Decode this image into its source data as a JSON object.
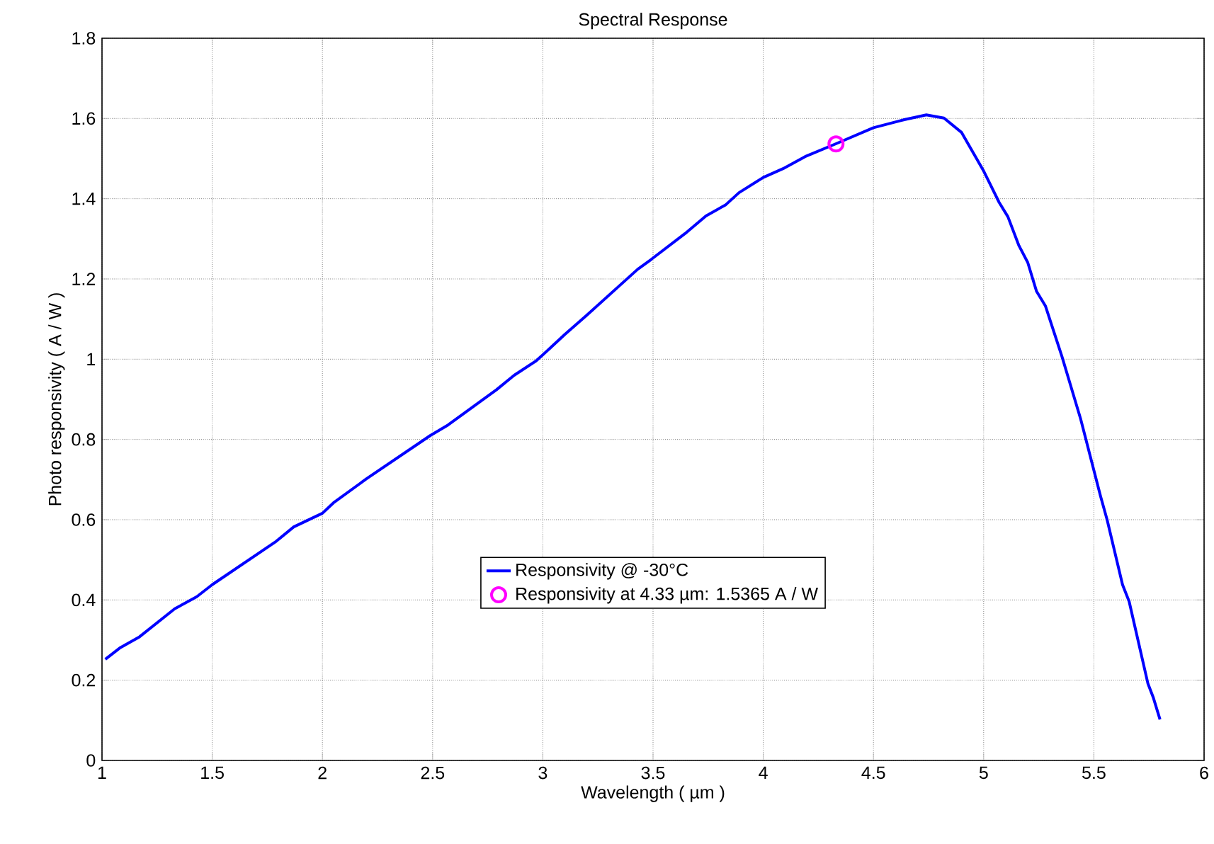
{
  "chart_data": {
    "type": "line",
    "title": "Spectral Response",
    "xlabel": "Wavelength ( µm )",
    "ylabel": "Photo responsivity ( A / W )",
    "xlim": [
      1,
      6
    ],
    "xticks": [
      1,
      1.5,
      2,
      2.5,
      3,
      3.5,
      4,
      4.5,
      5,
      5.5,
      6
    ],
    "ylim": [
      0,
      1.8
    ],
    "yticks": [
      0,
      0.2,
      0.4,
      0.6,
      0.8,
      1,
      1.2,
      1.4,
      1.6,
      1.8
    ],
    "grid": true,
    "legend": "bottom",
    "series": [
      {
        "name": "Responsivity @ -30°C",
        "color": "#0000ff",
        "marker": "none",
        "line_style": "solid",
        "x": [
          1.015,
          1.08,
          1.17,
          1.33,
          1.43,
          1.5,
          1.79,
          1.87,
          2.0,
          2.05,
          2.2,
          2.49,
          2.57,
          2.79,
          2.87,
          2.97,
          3.03,
          3.1,
          3.2,
          3.43,
          3.49,
          3.645,
          3.74,
          3.83,
          3.89,
          4.0,
          4.09,
          4.19,
          4.33,
          4.5,
          4.64,
          4.74,
          4.82,
          4.9,
          5.0,
          5.07,
          5.11,
          5.16,
          5.2,
          5.24,
          5.28,
          5.355,
          5.44,
          5.53,
          5.56,
          5.63,
          5.66,
          5.745,
          5.77,
          5.8
        ],
        "values": [
          0.252,
          0.28,
          0.308,
          0.378,
          0.408,
          0.438,
          0.546,
          0.582,
          0.616,
          0.642,
          0.702,
          0.81,
          0.836,
          0.924,
          0.96,
          0.996,
          1.026,
          1.062,
          1.11,
          1.224,
          1.248,
          1.313,
          1.357,
          1.385,
          1.415,
          1.453,
          1.475,
          1.505,
          1.537,
          1.577,
          1.597,
          1.609,
          1.601,
          1.565,
          1.469,
          1.391,
          1.355,
          1.283,
          1.241,
          1.169,
          1.133,
          1.007,
          0.851,
          0.659,
          0.6,
          0.438,
          0.396,
          0.192,
          0.156,
          0.102
        ]
      },
      {
        "name": "Responsivity at 4.33 µm: 1.5365 A / W",
        "color": "#ff00ff",
        "type": "scatter",
        "marker": "circle",
        "x": [
          4.33
        ],
        "values": [
          1.5365
        ]
      }
    ]
  }
}
